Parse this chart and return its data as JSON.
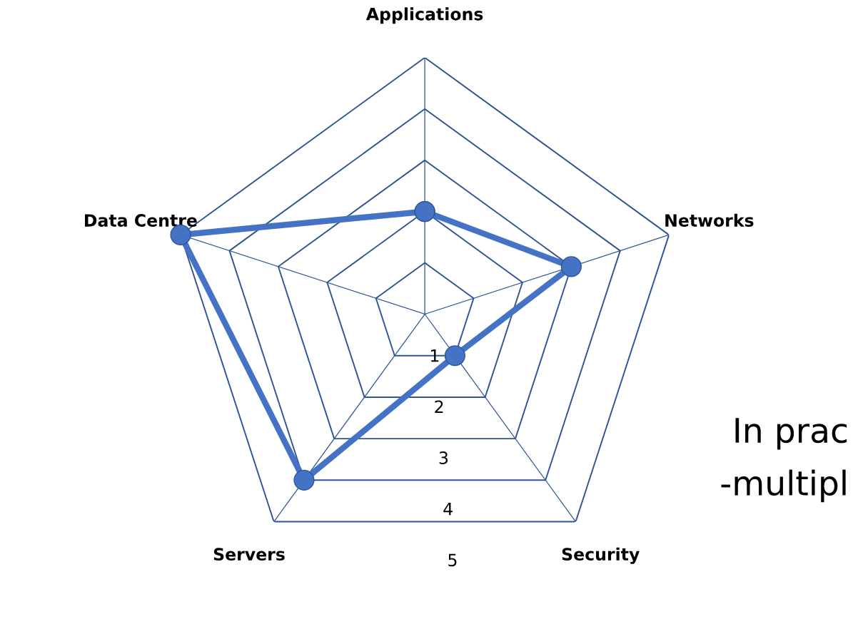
{
  "chart_data": {
    "type": "radar",
    "categories": [
      "Applications",
      "Networks",
      "Security",
      "Servers",
      "Data Centre"
    ],
    "series": [
      {
        "color": "#4472c4",
        "values": [
          2,
          3,
          1,
          4,
          5
        ]
      }
    ],
    "ylim": [
      0,
      5
    ],
    "yticks": [
      1,
      2,
      3,
      4,
      5
    ],
    "grid": true,
    "marker": "circle",
    "annotations": [
      "In prac",
      "-multipl"
    ]
  }
}
